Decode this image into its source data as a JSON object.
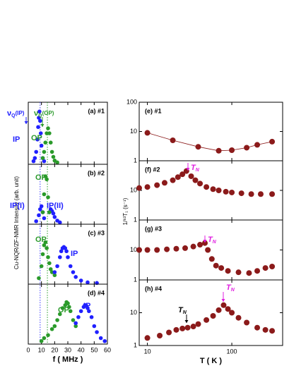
{
  "chart_data": [
    {
      "type": "scatter",
      "label": "(a) #1",
      "xlim": [
        0,
        60
      ],
      "xticks": [
        0,
        10,
        20,
        30,
        40,
        50,
        60
      ],
      "ylim": [
        0,
        1
      ],
      "reference_lines": [
        {
          "value": 9,
          "color": "#3a3aff"
        },
        {
          "value": 14.5,
          "color": "#2a9a2a"
        }
      ],
      "ylabel": "Cu-NQR/ZF-NMR Intensity (arb. unit)",
      "annotations": [
        {
          "text": "ν",
          "sub": "Q",
          "suffix": "(IP)",
          "color": "#2020ff"
        },
        {
          "text": "ν",
          "sub": "Q",
          "suffix": "(OP)",
          "color": "#2a9a2a"
        },
        {
          "text": "IP",
          "color": "#2020ff"
        },
        {
          "text": "OP",
          "color": "#2a9a2a"
        }
      ],
      "series": [
        {
          "name": "IP",
          "color": "#2020ff",
          "x": [
            4,
            5,
            6,
            7,
            7.5,
            8,
            8.5,
            9,
            9.5,
            10,
            11,
            12
          ],
          "values": [
            0.05,
            0.1,
            0.2,
            0.4,
            0.6,
            0.75,
            0.85,
            0.7,
            0.5,
            0.3,
            0.1,
            0.05
          ]
        },
        {
          "name": "OP",
          "color": "#2a9a2a",
          "x": [
            11,
            12,
            13,
            14,
            15,
            16,
            17,
            18,
            19,
            20,
            22
          ],
          "values": [
            0.1,
            0.2,
            0.35,
            0.5,
            0.58,
            0.5,
            0.35,
            0.2,
            0.12,
            0.06,
            0.03
          ]
        }
      ]
    },
    {
      "type": "scatter",
      "label": "(b) #2",
      "xlim": [
        0,
        60
      ],
      "xticks": [
        0,
        10,
        20,
        30,
        40,
        50,
        60
      ],
      "ylim": [
        0,
        1
      ],
      "annotations": [
        {
          "text": "OP",
          "color": "#2a9a2a"
        },
        {
          "text": "IP(I)",
          "color": "#2020ff"
        },
        {
          "text": "IP(II)",
          "color": "#2020ff"
        }
      ],
      "series": [
        {
          "name": "IP",
          "color": "#2020ff",
          "x": [
            6,
            8,
            9,
            10,
            11,
            12,
            16,
            17,
            18,
            19,
            20,
            22,
            24
          ],
          "values": [
            0.05,
            0.15,
            0.25,
            0.3,
            0.2,
            0.1,
            0.2,
            0.25,
            0.22,
            0.18,
            0.12,
            0.06,
            0.03
          ]
        },
        {
          "name": "OP",
          "color": "#2a9a2a",
          "x": [
            11,
            12,
            13,
            14,
            15,
            16
          ],
          "values": [
            0.2,
            0.5,
            0.8,
            0.75,
            0.45,
            0.2
          ]
        }
      ]
    },
    {
      "type": "scatter",
      "label": "(c) #3",
      "xlim": [
        0,
        60
      ],
      "xticks": [
        0,
        10,
        20,
        30,
        40,
        50,
        60
      ],
      "ylim": [
        0,
        1
      ],
      "annotations": [
        {
          "text": "OP",
          "color": "#2a9a2a"
        },
        {
          "text": "IP",
          "color": "#2020ff"
        }
      ],
      "series": [
        {
          "name": "OP",
          "color": "#2a9a2a",
          "x": [
            8,
            10,
            11,
            12,
            13,
            14,
            15,
            16,
            17,
            18,
            20
          ],
          "values": [
            0.1,
            0.3,
            0.5,
            0.65,
            0.7,
            0.6,
            0.45,
            0.35,
            0.25,
            0.2,
            0.15
          ]
        },
        {
          "name": "IP",
          "color": "#2020ff",
          "x": [
            20,
            22,
            24,
            25,
            26,
            27,
            28,
            29,
            30,
            32,
            34,
            36,
            40,
            45,
            52
          ],
          "values": [
            0.2,
            0.3,
            0.45,
            0.55,
            0.6,
            0.62,
            0.6,
            0.55,
            0.45,
            0.3,
            0.2,
            0.12,
            0.06,
            0.03,
            0.02
          ]
        }
      ]
    },
    {
      "type": "scatter",
      "label": "(d) #4",
      "xlim": [
        0,
        60
      ],
      "xticks": [
        0,
        10,
        20,
        30,
        40,
        50,
        60
      ],
      "ylim": [
        0,
        1
      ],
      "xlabel": "f ( MHz )",
      "annotations": [
        {
          "text": "OP",
          "color": "#2a9a2a"
        },
        {
          "text": "IP",
          "color": "#2020ff"
        }
      ],
      "series": [
        {
          "name": "OP",
          "color": "#2a9a2a",
          "x": [
            10,
            12,
            15,
            18,
            20,
            22,
            24,
            26,
            28,
            29,
            30,
            31,
            32,
            34,
            36
          ],
          "values": [
            0.05,
            0.1,
            0.15,
            0.25,
            0.3,
            0.4,
            0.5,
            0.6,
            0.65,
            0.7,
            0.68,
            0.62,
            0.55,
            0.4,
            0.3
          ]
        },
        {
          "name": "IP",
          "color": "#2020ff",
          "x": [
            36,
            38,
            40,
            42,
            43,
            44,
            45,
            46,
            48,
            50,
            52,
            55,
            58
          ],
          "values": [
            0.35,
            0.45,
            0.55,
            0.62,
            0.65,
            0.64,
            0.6,
            0.55,
            0.45,
            0.3,
            0.2,
            0.1,
            0.05
          ]
        }
      ]
    },
    {
      "type": "scatter",
      "label": "(e) #1",
      "xscale": "log",
      "yscale": "log",
      "xlim": [
        8,
        400
      ],
      "xticks": [
        10,
        100
      ],
      "ylim": [
        1,
        100
      ],
      "yticks": [
        1,
        10,
        100
      ],
      "connect": true,
      "series": [
        {
          "color": "#8b1a1a",
          "x": [
            10,
            20,
            40,
            70,
            100,
            150,
            200,
            300
          ],
          "values": [
            9,
            5,
            3,
            2.2,
            2.3,
            2.8,
            3.5,
            4.5
          ]
        }
      ]
    },
    {
      "type": "scatter",
      "label": "(f) #2",
      "xscale": "log",
      "yscale": "log",
      "xlim": [
        8,
        400
      ],
      "xticks": [
        10,
        100
      ],
      "ylim": [
        1,
        100
      ],
      "yticks": [
        1,
        10
      ],
      "ylabel": "1/⁶³T₁ (s⁻¹)",
      "annotations": [
        {
          "text": "T",
          "sub": "N",
          "color": "#e020e0"
        }
      ],
      "series": [
        {
          "color": "#8b1a1a",
          "x": [
            8,
            10,
            13,
            16,
            20,
            23,
            26,
            29,
            33,
            37,
            42,
            50,
            60,
            70,
            85,
            100,
            130,
            170,
            220,
            300
          ],
          "values": [
            12,
            13,
            15,
            18,
            22,
            28,
            35,
            45,
            30,
            22,
            17,
            13,
            11,
            10,
            9,
            8.5,
            8,
            7.5,
            7.5,
            7.5
          ]
        }
      ]
    },
    {
      "type": "scatter",
      "label": "(g) #3",
      "xscale": "log",
      "yscale": "log",
      "xlim": [
        8,
        400
      ],
      "xticks": [
        10,
        100
      ],
      "ylim": [
        1,
        100
      ],
      "yticks": [
        1,
        10
      ],
      "annotations": [
        {
          "text": "T",
          "sub": "N",
          "color": "#e020e0"
        }
      ],
      "series": [
        {
          "color": "#8b1a1a",
          "x": [
            8,
            10,
            13,
            17,
            22,
            28,
            35,
            42,
            48,
            52,
            58,
            65,
            75,
            90,
            120,
            160,
            200,
            250,
            300
          ],
          "values": [
            10,
            10,
            10,
            10.5,
            11,
            11.5,
            13,
            15,
            17,
            10,
            5,
            3,
            2.5,
            2,
            1.8,
            1.7,
            2,
            2.5,
            2.8
          ]
        }
      ]
    },
    {
      "type": "scatter",
      "label": "(h) #4",
      "xscale": "log",
      "yscale": "log",
      "xlim": [
        8,
        400
      ],
      "xticks": [
        10,
        100
      ],
      "ylim": [
        1,
        100
      ],
      "yticks": [
        1,
        10
      ],
      "xlabel": "T ( K )",
      "annotations": [
        {
          "text": "T",
          "sub": "N",
          "color": "#e020e0"
        },
        {
          "text": "T",
          "sub": "N",
          "color": "#000000"
        }
      ],
      "series": [
        {
          "color": "#8b1a1a",
          "x": [
            10,
            14,
            18,
            22,
            26,
            30,
            35,
            40,
            50,
            60,
            70,
            80,
            90,
            100,
            120,
            150,
            200,
            250,
            300
          ],
          "values": [
            1.7,
            2,
            2.5,
            3,
            3.3,
            3.5,
            3.8,
            4.5,
            6,
            8,
            12,
            17,
            13,
            10,
            7,
            5,
            3.5,
            3,
            2.8
          ]
        }
      ]
    }
  ]
}
